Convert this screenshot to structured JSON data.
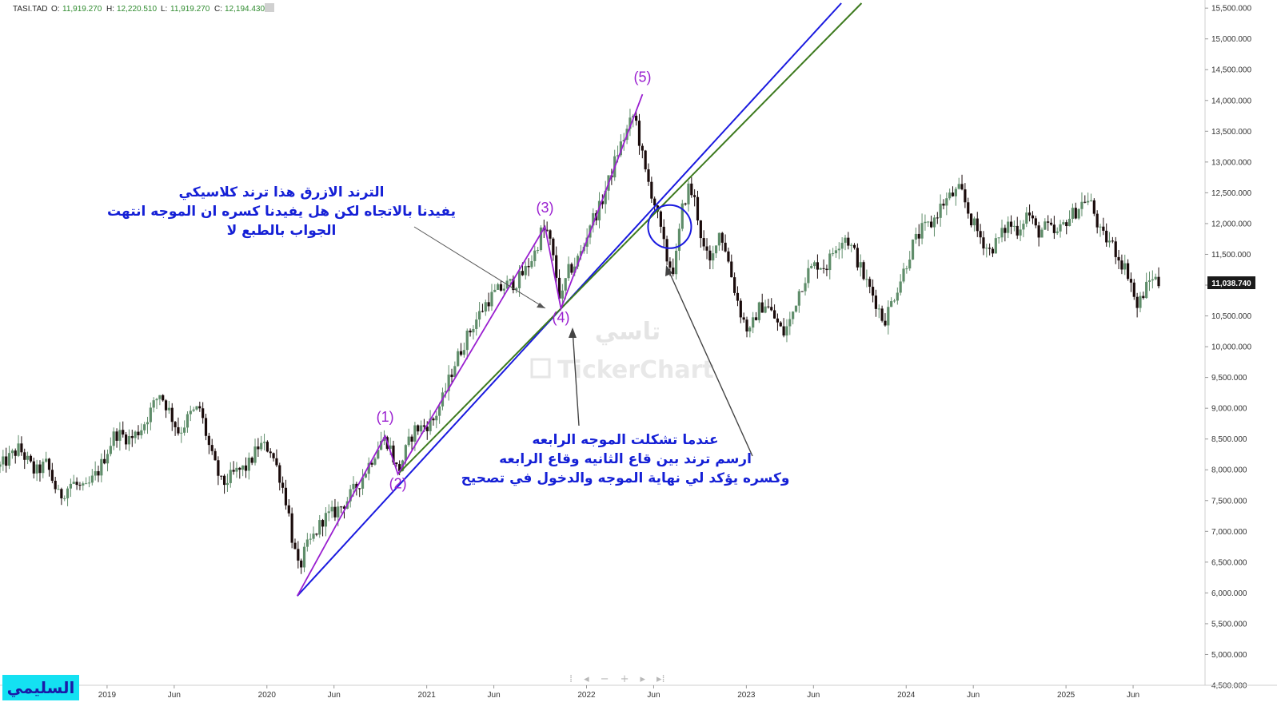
{
  "header": {
    "symbol": "TASI.TAD",
    "o_label": "O:",
    "o_value": "11,919.270",
    "h_label": "H:",
    "h_value": "12,220.510",
    "l_label": "L:",
    "l_value": "11,919.270",
    "c_label": "C:",
    "c_value": "12,194.430"
  },
  "colors": {
    "bull": "#5f8d6a",
    "bear": "#1a0b0b",
    "blue_trend": "#1a1adf",
    "green_trend": "#3d7a1e",
    "wave": "#9a1fd0",
    "annotation": "#1520d6",
    "price_tag": "#1a1a1a"
  },
  "chart_data": {
    "type": "candlestick",
    "y_ticks": [
      "4,500.000",
      "5,000.000",
      "5,500.000",
      "6,000.000",
      "6,500.000",
      "7,000.000",
      "7,500.000",
      "8,000.000",
      "8,500.000",
      "9,000.000",
      "9,500.000",
      "10,000.000",
      "10,500.000",
      "11,000.000",
      "11,500.000",
      "12,000.000",
      "12,500.000",
      "13,000.000",
      "13,500.000",
      "14,000.000",
      "14,500.000",
      "15,000.000",
      "15,500.000"
    ],
    "y_tick_values": [
      4500,
      5000,
      5500,
      6000,
      6500,
      7000,
      7500,
      8000,
      8500,
      9000,
      9500,
      10000,
      10500,
      11000,
      11500,
      12000,
      12500,
      13000,
      13500,
      14000,
      14500,
      15000,
      15500
    ],
    "ylim": [
      4500,
      15580
    ],
    "x_ticks": [
      {
        "label": "2019",
        "t": 2019.0
      },
      {
        "label": "Jun",
        "t": 2019.42
      },
      {
        "label": "2020",
        "t": 2020.0
      },
      {
        "label": "Jun",
        "t": 2020.42
      },
      {
        "label": "2021",
        "t": 2021.0
      },
      {
        "label": "Jun",
        "t": 2021.42
      },
      {
        "label": "2022",
        "t": 2022.0
      },
      {
        "label": "Jun",
        "t": 2022.42
      },
      {
        "label": "2023",
        "t": 2023.0
      },
      {
        "label": "Jun",
        "t": 2023.42
      },
      {
        "label": "2024",
        "t": 2024.0
      },
      {
        "label": "Jun",
        "t": 2024.42
      },
      {
        "label": "2025",
        "t": 2025.0
      },
      {
        "label": "Jun",
        "t": 2025.42
      }
    ],
    "xlim": [
      2018.33,
      2025.87
    ],
    "last_price": "11,038.740",
    "last_price_value": 11038.74,
    "close_path": [
      [
        2018.33,
        8050
      ],
      [
        2018.45,
        8350
      ],
      [
        2018.55,
        7950
      ],
      [
        2018.62,
        8100
      ],
      [
        2018.7,
        7550
      ],
      [
        2018.78,
        7800
      ],
      [
        2018.86,
        7650
      ],
      [
        2018.95,
        8000
      ],
      [
        2019.05,
        8600
      ],
      [
        2019.15,
        8500
      ],
      [
        2019.22,
        8700
      ],
      [
        2019.28,
        9000
      ],
      [
        2019.33,
        9250
      ],
      [
        2019.38,
        9000
      ],
      [
        2019.45,
        8600
      ],
      [
        2019.52,
        8900
      ],
      [
        2019.58,
        9000
      ],
      [
        2019.65,
        8250
      ],
      [
        2019.72,
        7750
      ],
      [
        2019.8,
        7950
      ],
      [
        2019.88,
        8050
      ],
      [
        2019.95,
        8400
      ],
      [
        2020.02,
        8350
      ],
      [
        2020.08,
        7900
      ],
      [
        2020.13,
        7400
      ],
      [
        2020.16,
        6850
      ],
      [
        2020.2,
        6350
      ],
      [
        2020.24,
        6700
      ],
      [
        2020.3,
        6950
      ],
      [
        2020.35,
        7200
      ],
      [
        2020.42,
        7300
      ],
      [
        2020.5,
        7500
      ],
      [
        2020.58,
        7800
      ],
      [
        2020.66,
        8200
      ],
      [
        2020.72,
        8500
      ],
      [
        2020.76,
        8450
      ],
      [
        2020.82,
        7950
      ],
      [
        2020.86,
        8250
      ],
      [
        2020.92,
        8650
      ],
      [
        2020.98,
        8700
      ],
      [
        2021.04,
        8800
      ],
      [
        2021.1,
        9150
      ],
      [
        2021.17,
        9700
      ],
      [
        2021.24,
        10100
      ],
      [
        2021.3,
        10400
      ],
      [
        2021.38,
        10750
      ],
      [
        2021.44,
        10900
      ],
      [
        2021.5,
        11000
      ],
      [
        2021.56,
        11050
      ],
      [
        2021.62,
        11250
      ],
      [
        2021.68,
        11550
      ],
      [
        2021.72,
        11900
      ],
      [
        2021.76,
        11850
      ],
      [
        2021.8,
        11300
      ],
      [
        2021.84,
        10700
      ],
      [
        2021.88,
        11200
      ],
      [
        2021.93,
        11350
      ],
      [
        2021.98,
        11600
      ],
      [
        2022.02,
        12000
      ],
      [
        2022.08,
        12250
      ],
      [
        2022.14,
        12700
      ],
      [
        2022.2,
        13200
      ],
      [
        2022.26,
        13550
      ],
      [
        2022.3,
        13800
      ],
      [
        2022.33,
        13350
      ],
      [
        2022.37,
        12800
      ],
      [
        2022.42,
        12400
      ],
      [
        2022.47,
        11800
      ],
      [
        2022.51,
        11350
      ],
      [
        2022.55,
        11250
      ],
      [
        2022.6,
        12250
      ],
      [
        2022.64,
        12600
      ],
      [
        2022.68,
        12350
      ],
      [
        2022.73,
        11600
      ],
      [
        2022.78,
        11300
      ],
      [
        2022.82,
        11900
      ],
      [
        2022.86,
        11700
      ],
      [
        2022.92,
        11000
      ],
      [
        2022.97,
        10500
      ],
      [
        2023.02,
        10200
      ],
      [
        2023.07,
        10600
      ],
      [
        2023.12,
        10700
      ],
      [
        2023.18,
        10450
      ],
      [
        2023.23,
        10200
      ],
      [
        2023.28,
        10450
      ],
      [
        2023.32,
        10850
      ],
      [
        2023.38,
        11200
      ],
      [
        2023.44,
        11350
      ],
      [
        2023.5,
        11300
      ],
      [
        2023.56,
        11650
      ],
      [
        2023.62,
        11800
      ],
      [
        2023.68,
        11500
      ],
      [
        2023.74,
        11100
      ],
      [
        2023.8,
        10800
      ],
      [
        2023.86,
        10400
      ],
      [
        2023.92,
        10800
      ],
      [
        2023.98,
        11200
      ],
      [
        2024.04,
        11650
      ],
      [
        2024.1,
        11900
      ],
      [
        2024.16,
        12000
      ],
      [
        2024.22,
        12300
      ],
      [
        2024.28,
        12450
      ],
      [
        2024.34,
        12550
      ],
      [
        2024.4,
        12100
      ],
      [
        2024.46,
        11800
      ],
      [
        2024.52,
        11550
      ],
      [
        2024.58,
        11750
      ],
      [
        2024.64,
        12000
      ],
      [
        2024.7,
        11900
      ],
      [
        2024.76,
        12200
      ],
      [
        2024.82,
        11850
      ],
      [
        2024.88,
        11950
      ],
      [
        2024.94,
        11800
      ],
      [
        2025.0,
        12050
      ],
      [
        2025.06,
        12200
      ],
      [
        2025.12,
        12400
      ],
      [
        2025.16,
        12300
      ],
      [
        2025.22,
        11800
      ],
      [
        2025.28,
        11700
      ],
      [
        2025.34,
        11400
      ],
      [
        2025.4,
        11150
      ],
      [
        2025.44,
        10600
      ],
      [
        2025.48,
        10850
      ],
      [
        2025.54,
        11150
      ],
      [
        2025.58,
        11038
      ]
    ]
  },
  "drawings": {
    "blue_trend": [
      [
        2020.19,
        5950
      ],
      [
        2022.47,
        12400
      ]
    ],
    "green_trend": [
      [
        2020.82,
        7930
      ],
      [
        2021.84,
        10620
      ]
    ],
    "blue_circle": {
      "t": 2022.52,
      "v": 11950
    },
    "wave_path": [
      [
        2020.19,
        5950
      ],
      [
        2020.74,
        8550
      ],
      [
        2020.82,
        7930
      ],
      [
        2021.74,
        11950
      ],
      [
        2021.84,
        10620
      ],
      [
        2022.35,
        14100
      ]
    ],
    "wave_labels": [
      {
        "text": "(1)",
        "t": 2020.74,
        "v": 8780
      },
      {
        "text": "(2)",
        "t": 2020.82,
        "v": 7700
      },
      {
        "text": "(3)",
        "t": 2021.74,
        "v": 12180
      },
      {
        "text": "(4)",
        "t": 2021.84,
        "v": 10400
      },
      {
        "text": "(5)",
        "t": 2022.35,
        "v": 14300
      }
    ]
  },
  "annotations": {
    "top_lines": [
      "الترند الازرق هذا ترند كلاسيكي",
      "يفيدنا بالاتجاه لكن هل يفيدنا كسره ان الموجه انتهت",
      "الجواب بالطبع لا"
    ],
    "bottom_lines": [
      "عندما تشكلت الموجه الرابعه",
      "ارسم ترند بين قاع الثانيه وقاع الرابعه",
      "وكسره يؤكد لي نهاية الموجه والدخول في تصحيح"
    ]
  },
  "watermark": {
    "arabic": "تاسي",
    "brand": "TickerChart"
  },
  "author": "السليمي",
  "nav": {
    "first": "⁞",
    "prev": "◂",
    "zoom_out": "−",
    "zoom_in": "+",
    "next": "▸",
    "last": "▸⁞"
  }
}
